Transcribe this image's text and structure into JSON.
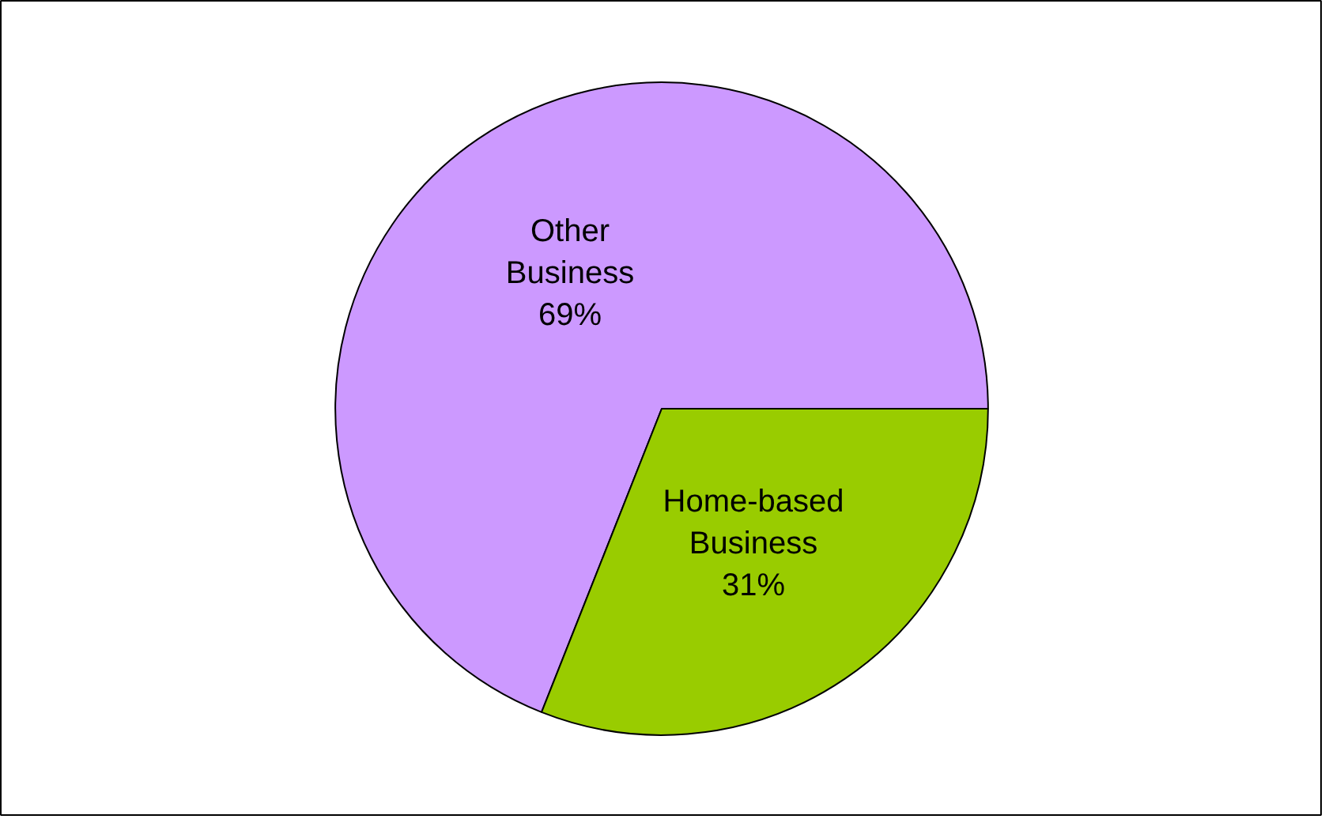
{
  "chart_data": {
    "type": "pie",
    "categories": [
      "Other Business",
      "Home-based Business"
    ],
    "values": [
      69,
      31
    ],
    "colors": [
      "#cc99ff",
      "#99cc00"
    ],
    "value_labels": [
      "69%",
      "31%"
    ]
  }
}
